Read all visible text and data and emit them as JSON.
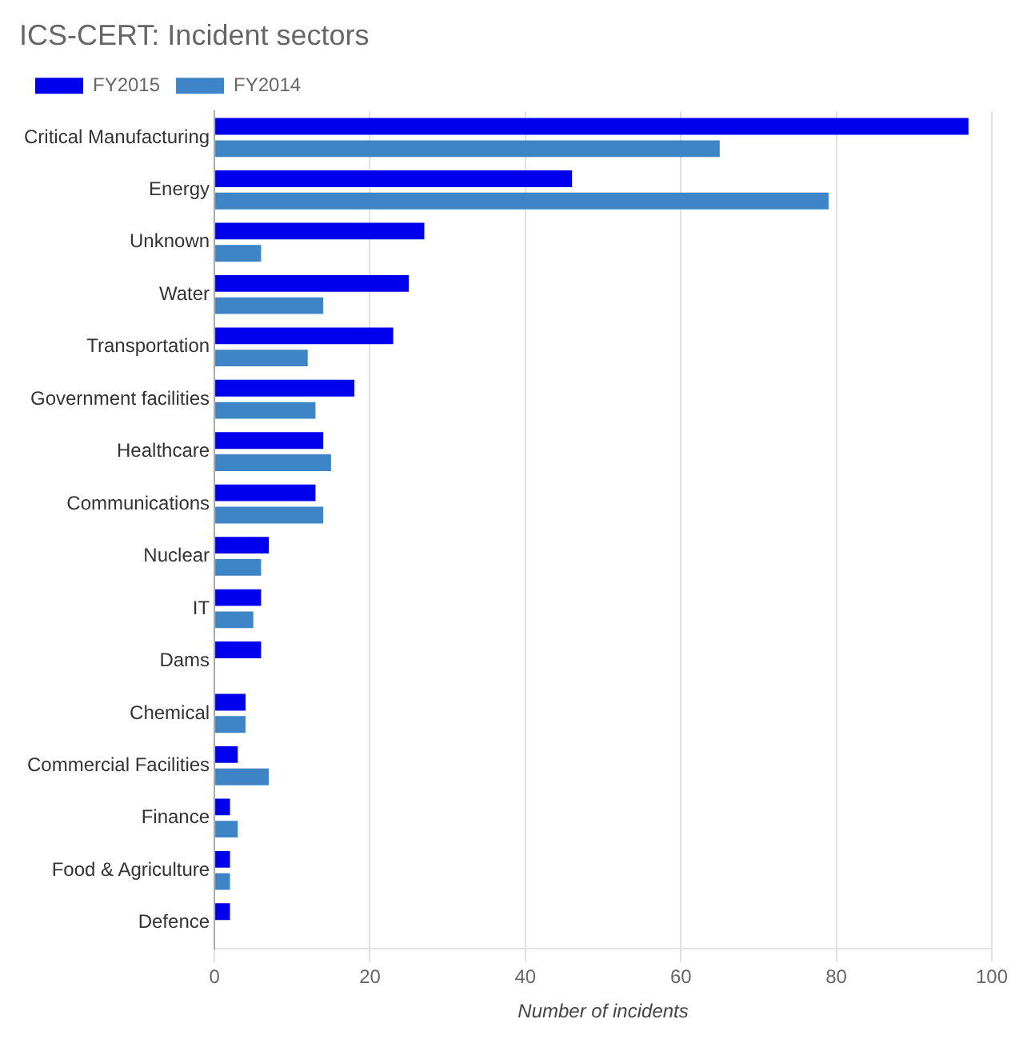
{
  "chart_data": {
    "type": "bar",
    "orientation": "horizontal",
    "title": "ICS-CERT: Incident sectors",
    "xlabel": "Number of incidents",
    "categories": [
      "Critical Manufacturing",
      "Energy",
      "Unknown",
      "Water",
      "Transportation",
      "Government facilities",
      "Healthcare",
      "Communications",
      "Nuclear",
      "IT",
      "Dams",
      "Chemical",
      "Commercial Facilities",
      "Finance",
      "Food & Agriculture",
      "Defence"
    ],
    "series": [
      {
        "name": "FY2015",
        "color": "#0000ee",
        "values": [
          97,
          46,
          27,
          25,
          23,
          18,
          14,
          13,
          7,
          6,
          6,
          4,
          3,
          2,
          2,
          2
        ]
      },
      {
        "name": "FY2014",
        "color": "#3d85c6",
        "values": [
          65,
          79,
          6,
          14,
          12,
          13,
          15,
          14,
          6,
          5,
          0,
          4,
          7,
          3,
          2,
          0
        ]
      }
    ],
    "xlim": [
      0,
      100
    ],
    "xticks": [
      0,
      20,
      40,
      60,
      80,
      100
    ],
    "grid": "x",
    "legend": "top left"
  }
}
